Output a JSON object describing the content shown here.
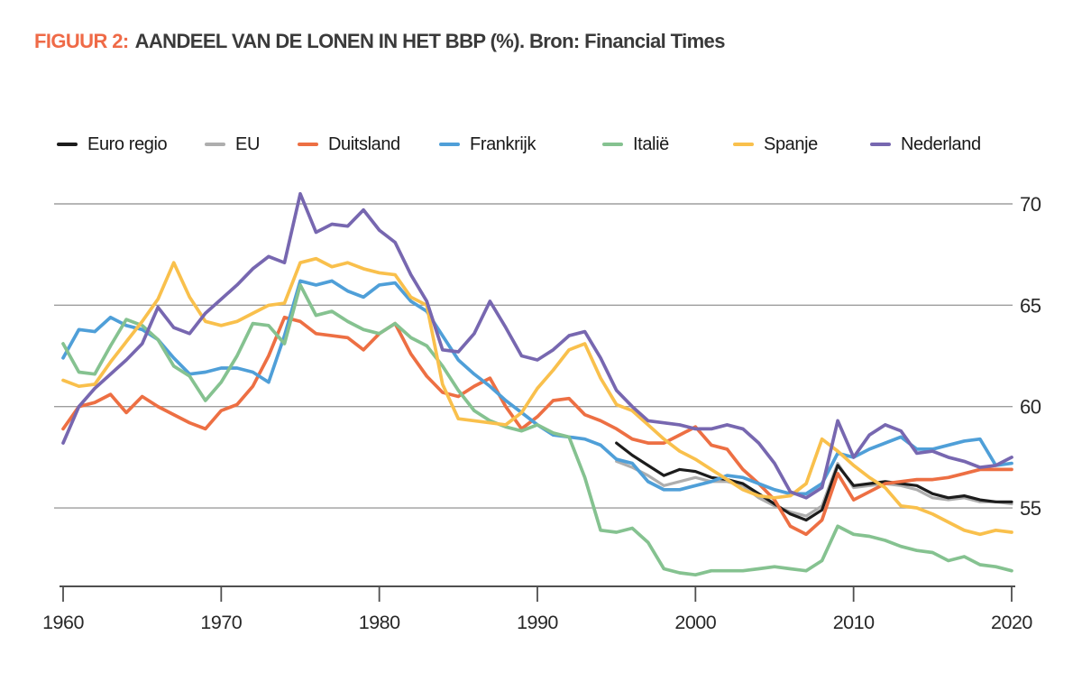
{
  "title": {
    "prefix": "FIGUUR 2:",
    "main": "AANDEEL VAN DE LONEN IN HET BBP (%). Bron: Financial Times",
    "prefix_color": "#ef6a47",
    "main_color": "#3a3a3a"
  },
  "chart_data": {
    "type": "line",
    "title": "Aandeel van de lonen in het BBP (%)",
    "source": "Financial Times",
    "xlabel": "",
    "ylabel": "",
    "x_range": [
      1960,
      2020
    ],
    "ylim": [
      51,
      71
    ],
    "x_ticks": [
      1960,
      1970,
      1980,
      1990,
      2000,
      2010,
      2020
    ],
    "y_ticks": [
      70,
      65,
      60,
      55
    ],
    "grid": true,
    "y_axis_side": "right",
    "legend_position": "top",
    "series": [
      {
        "name": "Euro regio",
        "color": "#1c1c1c",
        "start_year": 1995,
        "values": [
          58.2,
          57.6,
          57.1,
          56.6,
          56.9,
          56.8,
          56.5,
          56.4,
          56.2,
          55.7,
          55.2,
          54.7,
          54.4,
          54.9,
          57.1,
          56.1,
          56.2,
          56.3,
          56.2,
          56.1,
          55.7,
          55.5,
          55.6,
          55.4,
          55.3,
          55.3
        ]
      },
      {
        "name": "EU",
        "color": "#aeaeae",
        "start_year": 1995,
        "values": [
          57.3,
          57.0,
          56.6,
          56.1,
          56.3,
          56.5,
          56.3,
          56.3,
          56.1,
          55.5,
          55.1,
          54.8,
          54.6,
          55.1,
          57.2,
          56.0,
          56.1,
          56.2,
          56.1,
          55.9,
          55.5,
          55.4,
          55.5,
          55.3,
          55.3,
          55.2
        ]
      },
      {
        "name": "Duitsland",
        "color": "#ed6f43",
        "start_year": 1960,
        "values": [
          58.9,
          60.0,
          60.2,
          60.6,
          59.7,
          60.5,
          60.0,
          59.6,
          59.2,
          58.9,
          59.8,
          60.1,
          61.0,
          62.5,
          64.4,
          64.2,
          63.6,
          63.5,
          63.4,
          62.8,
          63.6,
          64.1,
          62.6,
          61.5,
          60.7,
          60.5,
          61.0,
          61.4,
          60.0,
          58.9,
          59.5,
          60.3,
          60.4,
          59.6,
          59.3,
          58.9,
          58.4,
          58.2,
          58.2,
          58.6,
          59.0,
          58.1,
          57.9,
          56.9,
          56.2,
          55.4,
          54.1,
          53.7,
          54.4,
          56.7,
          55.4,
          55.8,
          56.2,
          56.3,
          56.4,
          56.4,
          56.5,
          56.7,
          56.9,
          56.9,
          56.9
        ]
      },
      {
        "name": "Frankrijk",
        "color": "#4f9fd8",
        "start_year": 1960,
        "values": [
          62.4,
          63.8,
          63.7,
          64.4,
          64.0,
          63.8,
          63.3,
          62.4,
          61.6,
          61.7,
          61.9,
          61.9,
          61.7,
          61.2,
          63.5,
          66.2,
          66.0,
          66.2,
          65.7,
          65.4,
          66.0,
          66.1,
          65.2,
          64.7,
          63.5,
          62.3,
          61.6,
          61.0,
          60.3,
          59.7,
          59.1,
          58.6,
          58.5,
          58.4,
          58.1,
          57.4,
          57.2,
          56.3,
          55.9,
          55.9,
          56.1,
          56.3,
          56.6,
          56.5,
          56.2,
          55.9,
          55.7,
          55.7,
          56.2,
          57.7,
          57.5,
          57.9,
          58.2,
          58.5,
          57.9,
          57.9,
          58.1,
          58.3,
          58.4,
          57.1,
          57.2
        ]
      },
      {
        "name": "Italië",
        "color": "#85c290",
        "start_year": 1960,
        "values": [
          63.1,
          61.7,
          61.6,
          63.0,
          64.3,
          64.0,
          63.3,
          62.0,
          61.5,
          60.3,
          61.2,
          62.5,
          64.1,
          64.0,
          63.1,
          66.0,
          64.5,
          64.7,
          64.2,
          63.8,
          63.6,
          64.1,
          63.4,
          63.0,
          62.0,
          60.8,
          59.8,
          59.3,
          59.0,
          58.8,
          59.1,
          58.7,
          58.5,
          56.5,
          53.9,
          53.8,
          54.0,
          53.3,
          52.0,
          51.8,
          51.7,
          51.9,
          51.9,
          51.9,
          52.0,
          52.1,
          52.0,
          51.9,
          52.4,
          54.1,
          53.7,
          53.6,
          53.4,
          53.1,
          52.9,
          52.8,
          52.4,
          52.6,
          52.2,
          52.1,
          51.9
        ]
      },
      {
        "name": "Spanje",
        "color": "#f9c04c",
        "start_year": 1960,
        "values": [
          61.3,
          61.0,
          61.1,
          62.2,
          63.2,
          64.2,
          65.3,
          67.1,
          65.4,
          64.2,
          64.0,
          64.2,
          64.6,
          65.0,
          65.1,
          67.1,
          67.3,
          66.9,
          67.1,
          66.8,
          66.6,
          66.5,
          65.4,
          65.0,
          61.1,
          59.4,
          59.3,
          59.2,
          59.1,
          59.7,
          60.9,
          61.8,
          62.8,
          63.1,
          61.4,
          60.1,
          59.8,
          59.1,
          58.4,
          57.8,
          57.4,
          56.9,
          56.4,
          55.9,
          55.6,
          55.5,
          55.6,
          56.2,
          58.4,
          57.8,
          57.1,
          56.5,
          56.0,
          55.1,
          55.0,
          54.7,
          54.3,
          53.9,
          53.7,
          53.9,
          53.8
        ]
      },
      {
        "name": "Nederland",
        "color": "#7767b0",
        "start_year": 1960,
        "values": [
          58.2,
          60.0,
          60.9,
          61.6,
          62.3,
          63.1,
          64.9,
          63.9,
          63.6,
          64.6,
          65.3,
          66.0,
          66.8,
          67.4,
          67.1,
          70.5,
          68.6,
          69.0,
          68.9,
          69.7,
          68.7,
          68.1,
          66.5,
          65.2,
          62.8,
          62.7,
          63.6,
          65.2,
          63.9,
          62.5,
          62.3,
          62.8,
          63.5,
          63.7,
          62.4,
          60.8,
          60.0,
          59.3,
          59.2,
          59.1,
          58.9,
          58.9,
          59.1,
          58.9,
          58.2,
          57.2,
          55.8,
          55.5,
          56.0,
          59.3,
          57.5,
          58.6,
          59.1,
          58.8,
          57.7,
          57.8,
          57.5,
          57.3,
          57.0,
          57.1,
          57.5
        ]
      }
    ]
  }
}
